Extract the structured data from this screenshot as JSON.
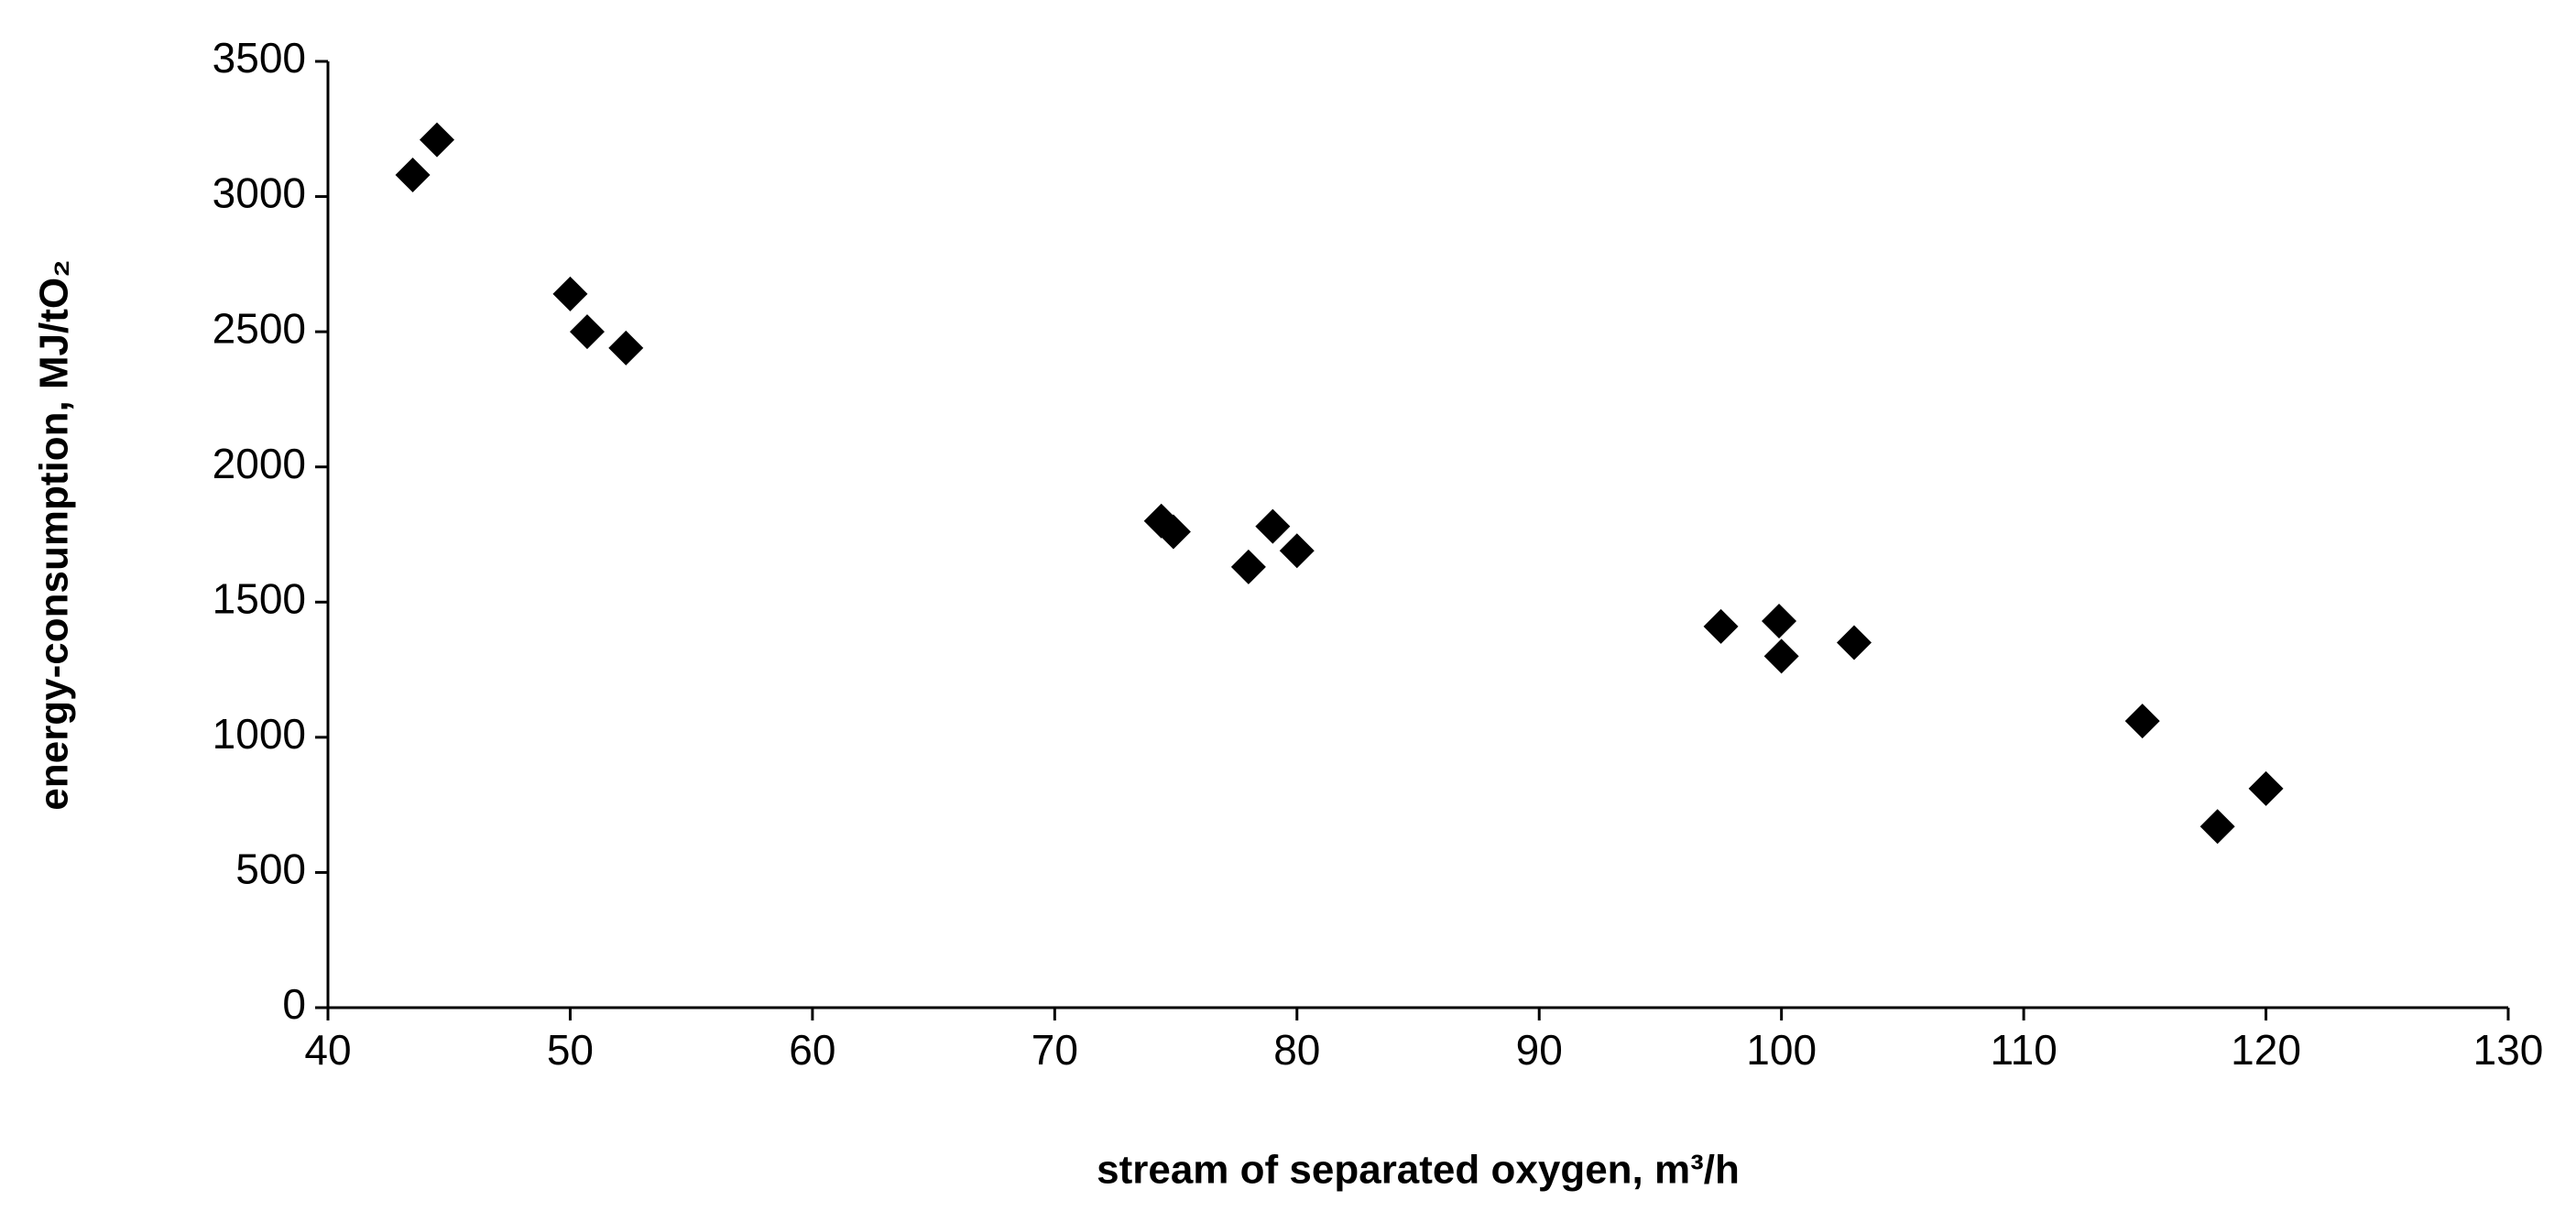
{
  "chart_data": {
    "type": "scatter",
    "x_label": "stream of separated oxygen, m³/h",
    "y_label": "energy-consumption, MJ/tO₂",
    "color": "#000000",
    "marker": "diamond",
    "x": [
      43.5,
      44.5,
      50.0,
      50.7,
      52.3,
      74.4,
      74.9,
      79.0,
      78.0,
      80.0,
      97.5,
      99.9,
      100.0,
      103.0,
      114.9,
      118.0,
      120.0
    ],
    "values": [
      3080,
      3210,
      2640,
      2500,
      2440,
      1800,
      1760,
      1780,
      1630,
      1690,
      1410,
      1430,
      1300,
      1350,
      1060,
      670,
      810
    ],
    "xlim": [
      40,
      130
    ],
    "xticks": [
      40,
      50,
      60,
      70,
      80,
      90,
      100,
      110,
      120,
      130
    ],
    "ylim": [
      0,
      3500
    ],
    "yticks": [
      0,
      500,
      1000,
      1500,
      2000,
      2500,
      3000,
      3500
    ]
  }
}
